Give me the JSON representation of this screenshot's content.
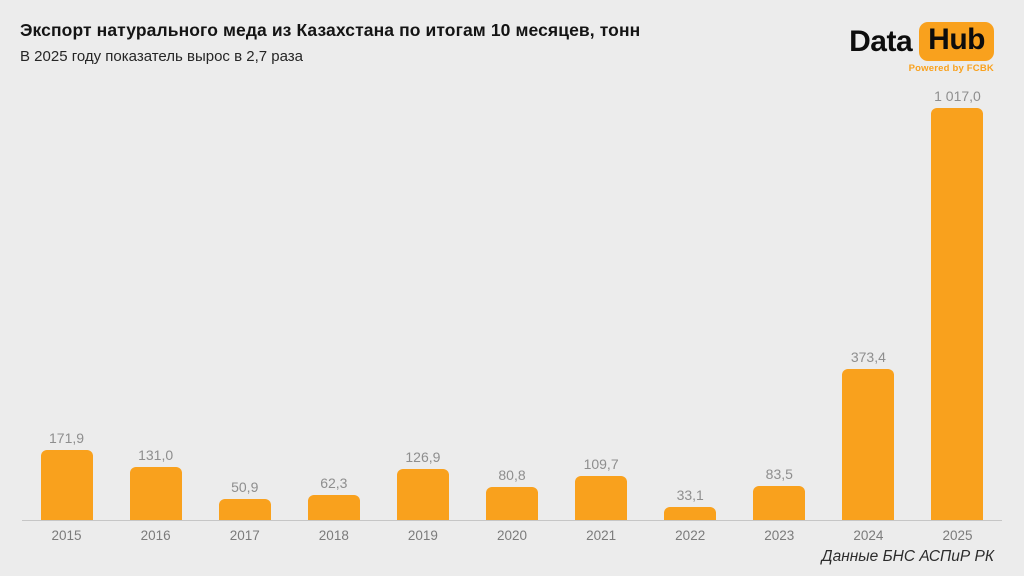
{
  "header": {
    "title": "Экспорт натурального меда из Казахстана по итогам 10 месяцев, тонн",
    "subtitle": "В 2025 году показатель вырос в 2,7 раза"
  },
  "logo": {
    "part1": "Data",
    "part2": "Hub",
    "tagline": "Powered by FCBK"
  },
  "footer": {
    "source": "Данные БНС АСПиР РК"
  },
  "colors": {
    "accent_orange": "#F9A11D",
    "background": "#ECECEC",
    "bar": "#F9A11D",
    "value_label": "#8e8e8e",
    "year_label": "#7b7b7b"
  },
  "chart_data": {
    "type": "bar",
    "title": "Экспорт натурального меда из Казахстана по итогам 10 месяцев, тонн",
    "subtitle": "В 2025 году показатель вырос в 2,7 раза",
    "categories": [
      "2015",
      "2016",
      "2017",
      "2018",
      "2019",
      "2020",
      "2021",
      "2022",
      "2023",
      "2024",
      "2025"
    ],
    "values": [
      171.9,
      131.0,
      50.9,
      62.3,
      126.9,
      80.8,
      109.7,
      33.1,
      83.5,
      373.4,
      1017.0
    ],
    "value_labels": [
      "171,9",
      "131,0",
      "50,9",
      "62,3",
      "126,9",
      "80,8",
      "109,7",
      "33,1",
      "83,5",
      "373,4",
      "1 017,0"
    ],
    "xlabel": "",
    "ylabel": "",
    "ylim": [
      0,
      1050
    ],
    "grid": false,
    "legend": false,
    "source_note": "Данные БНС АСПиР РК"
  }
}
